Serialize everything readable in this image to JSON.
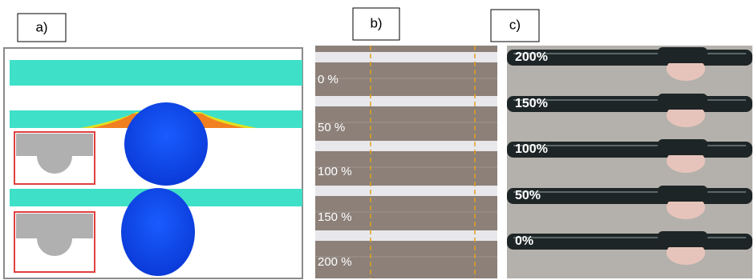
{
  "panels": [
    {
      "label": "a)"
    },
    {
      "label": "b)",
      "strain_labels": [
        "0 %",
        "50 %",
        "100 %",
        "150 %",
        "200 %"
      ]
    },
    {
      "label": "c)",
      "strain_labels": [
        "200%",
        "150%",
        "100%",
        "50%",
        "0%"
      ]
    }
  ]
}
